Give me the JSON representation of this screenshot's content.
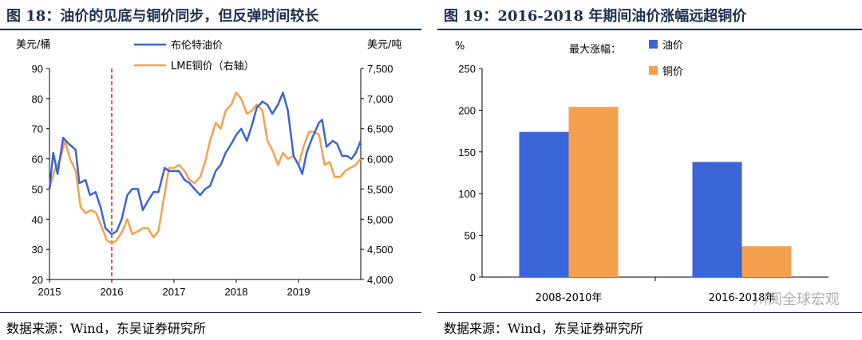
{
  "left_panel": {
    "title": "图 18：油价的见底与铜价同步，但反弹时间较长",
    "source": "数据来源：Wind，东吴证券研究所"
  },
  "right_panel": {
    "title": "图 19：2016-2018 年期间油价涨幅远超铜价",
    "source": "数据来源：Wind，东吴证券研究所",
    "watermark": "川阅全球宏观"
  },
  "chart_data": [
    {
      "type": "line",
      "ylabel": "美元/桶",
      "y2label": "美元/吨",
      "ylim": [
        20,
        90
      ],
      "y2lim": [
        4000,
        7500
      ],
      "x_ticks": [
        "2015",
        "2016",
        "2017",
        "2018",
        "2019"
      ],
      "y_ticks": [
        "20",
        "30",
        "40",
        "50",
        "60",
        "70",
        "80",
        "90"
      ],
      "y2_ticks": [
        "4,000",
        "4,500",
        "5,000",
        "5,500",
        "6,000",
        "6,500",
        "7,000",
        "7,500"
      ],
      "marker_line": {
        "x": 2016.0,
        "color": "#e02020",
        "style": "dashed"
      },
      "series": [
        {
          "name": "布伦特油价",
          "axis": "left",
          "color": "#3a64d8",
          "points": [
            [
              2015.0,
              50
            ],
            [
              2015.06,
              62
            ],
            [
              2015.13,
              55
            ],
            [
              2015.22,
              67
            ],
            [
              2015.31,
              65
            ],
            [
              2015.42,
              63
            ],
            [
              2015.48,
              52
            ],
            [
              2015.58,
              53
            ],
            [
              2015.65,
              48
            ],
            [
              2015.74,
              49
            ],
            [
              2015.82,
              44
            ],
            [
              2015.9,
              37
            ],
            [
              2016.0,
              35
            ],
            [
              2016.08,
              36
            ],
            [
              2016.16,
              40
            ],
            [
              2016.25,
              48
            ],
            [
              2016.33,
              50
            ],
            [
              2016.42,
              50
            ],
            [
              2016.5,
              43
            ],
            [
              2016.58,
              46
            ],
            [
              2016.67,
              49
            ],
            [
              2016.75,
              49
            ],
            [
              2016.85,
              57
            ],
            [
              2016.92,
              56
            ],
            [
              2017.0,
              56
            ],
            [
              2017.08,
              56
            ],
            [
              2017.17,
              53
            ],
            [
              2017.25,
              52
            ],
            [
              2017.33,
              50
            ],
            [
              2017.42,
              48
            ],
            [
              2017.5,
              50
            ],
            [
              2017.58,
              51
            ],
            [
              2017.67,
              56
            ],
            [
              2017.75,
              58
            ],
            [
              2017.83,
              62
            ],
            [
              2017.92,
              65
            ],
            [
              2018.0,
              68
            ],
            [
              2018.08,
              70
            ],
            [
              2018.17,
              66
            ],
            [
              2018.25,
              71
            ],
            [
              2018.33,
              77
            ],
            [
              2018.42,
              79
            ],
            [
              2018.5,
              78
            ],
            [
              2018.58,
              75
            ],
            [
              2018.67,
              78
            ],
            [
              2018.75,
              82
            ],
            [
              2018.83,
              76
            ],
            [
              2018.92,
              61
            ],
            [
              2019.0,
              58
            ],
            [
              2019.06,
              55
            ],
            [
              2019.13,
              62
            ],
            [
              2019.22,
              67
            ],
            [
              2019.33,
              72
            ],
            [
              2019.38,
              73
            ],
            [
              2019.45,
              64
            ],
            [
              2019.55,
              66
            ],
            [
              2019.62,
              65
            ],
            [
              2019.7,
              61
            ],
            [
              2019.78,
              61
            ],
            [
              2019.85,
              60
            ],
            [
              2019.92,
              62
            ],
            [
              2020.0,
              66
            ]
          ]
        },
        {
          "name": "LME铜价（右轴）",
          "axis": "right",
          "color": "#f5a04f",
          "points": [
            [
              2015.0,
              5500
            ],
            [
              2015.08,
              5800
            ],
            [
              2015.17,
              6000
            ],
            [
              2015.25,
              6300
            ],
            [
              2015.33,
              6000
            ],
            [
              2015.42,
              5800
            ],
            [
              2015.5,
              5200
            ],
            [
              2015.58,
              5100
            ],
            [
              2015.67,
              5150
            ],
            [
              2015.75,
              5100
            ],
            [
              2015.83,
              4900
            ],
            [
              2015.92,
              4650
            ],
            [
              2016.0,
              4600
            ],
            [
              2016.08,
              4650
            ],
            [
              2016.17,
              4800
            ],
            [
              2016.25,
              5000
            ],
            [
              2016.33,
              4750
            ],
            [
              2016.42,
              4800
            ],
            [
              2016.5,
              4850
            ],
            [
              2016.58,
              4850
            ],
            [
              2016.67,
              4700
            ],
            [
              2016.75,
              4800
            ],
            [
              2016.83,
              5300
            ],
            [
              2016.92,
              5850
            ],
            [
              2017.0,
              5850
            ],
            [
              2017.08,
              5900
            ],
            [
              2017.17,
              5800
            ],
            [
              2017.25,
              5650
            ],
            [
              2017.33,
              5600
            ],
            [
              2017.42,
              5700
            ],
            [
              2017.5,
              5950
            ],
            [
              2017.58,
              6300
            ],
            [
              2017.67,
              6600
            ],
            [
              2017.75,
              6500
            ],
            [
              2017.83,
              6800
            ],
            [
              2017.92,
              6900
            ],
            [
              2018.0,
              7100
            ],
            [
              2018.08,
              7000
            ],
            [
              2018.17,
              6750
            ],
            [
              2018.25,
              6800
            ],
            [
              2018.33,
              6900
            ],
            [
              2018.42,
              6800
            ],
            [
              2018.5,
              6300
            ],
            [
              2018.58,
              6150
            ],
            [
              2018.67,
              5900
            ],
            [
              2018.75,
              6100
            ],
            [
              2018.83,
              6000
            ],
            [
              2018.92,
              6050
            ],
            [
              2019.0,
              5900
            ],
            [
              2019.08,
              6200
            ],
            [
              2019.17,
              6450
            ],
            [
              2019.25,
              6450
            ],
            [
              2019.33,
              6400
            ],
            [
              2019.42,
              5900
            ],
            [
              2019.5,
              5950
            ],
            [
              2019.58,
              5700
            ],
            [
              2019.67,
              5700
            ],
            [
              2019.75,
              5800
            ],
            [
              2019.83,
              5850
            ],
            [
              2019.92,
              5900
            ],
            [
              2020.0,
              6000
            ]
          ]
        }
      ]
    },
    {
      "type": "bar",
      "ylabel": "%",
      "ylim": [
        0,
        250
      ],
      "y_ticks": [
        "0",
        "50",
        "100",
        "150",
        "200",
        "250"
      ],
      "legend_title": "最大涨幅：",
      "categories": [
        "2008-2010年",
        "2016-2018年"
      ],
      "series": [
        {
          "name": "油价",
          "color": "#3a64d8",
          "values": [
            174,
            138
          ]
        },
        {
          "name": "铜价",
          "color": "#f5a04f",
          "values": [
            204,
            37
          ]
        }
      ]
    }
  ]
}
